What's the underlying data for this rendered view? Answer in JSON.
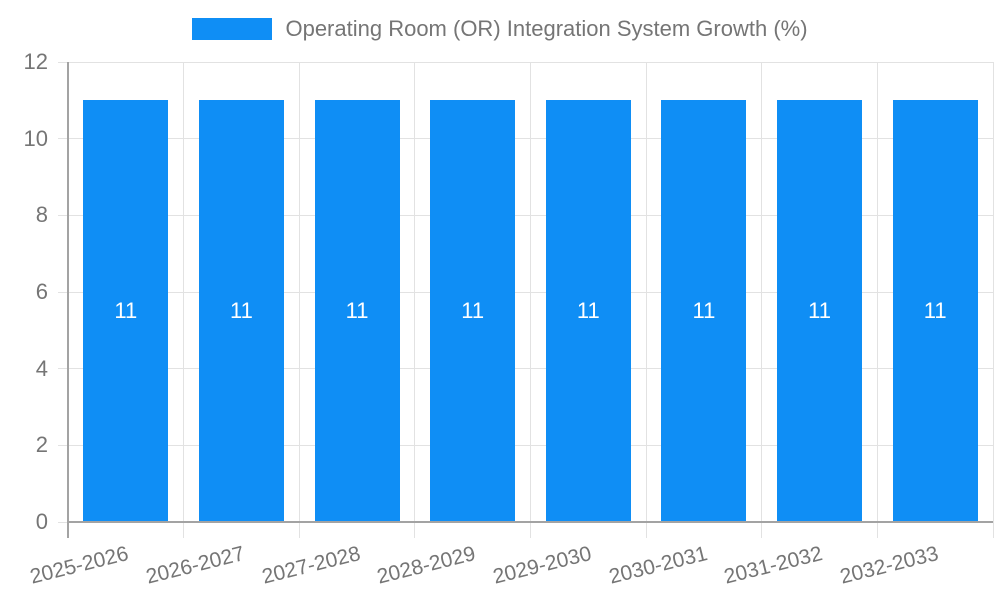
{
  "chart_data": {
    "type": "bar",
    "title": "Operating Room (OR) Integration System Growth (%)",
    "legend": {
      "position": "top",
      "label": "Operating Room (OR) Integration System Growth (%)"
    },
    "categories": [
      "2025-2026",
      "2026-2027",
      "2027-2028",
      "2028-2029",
      "2029-2030",
      "2030-2031",
      "2031-2032",
      "2032-2033"
    ],
    "values": [
      11,
      11,
      11,
      11,
      11,
      11,
      11,
      11
    ],
    "bar_value_labels": [
      "11",
      "11",
      "11",
      "11",
      "11",
      "11",
      "11",
      "11"
    ],
    "xlabel": "",
    "ylabel": "",
    "ylim": [
      0,
      12
    ],
    "yticks": [
      0,
      2,
      4,
      6,
      8,
      10,
      12
    ],
    "grid": true,
    "x_label_rotation_deg": -14,
    "colors": {
      "bar": "#0f8ef5",
      "axis_text": "#757575",
      "bar_label_text": "#ffffff",
      "gridline": "#e2e2e2",
      "axis_line": "#a3a3a3",
      "background": "#ffffff"
    }
  }
}
